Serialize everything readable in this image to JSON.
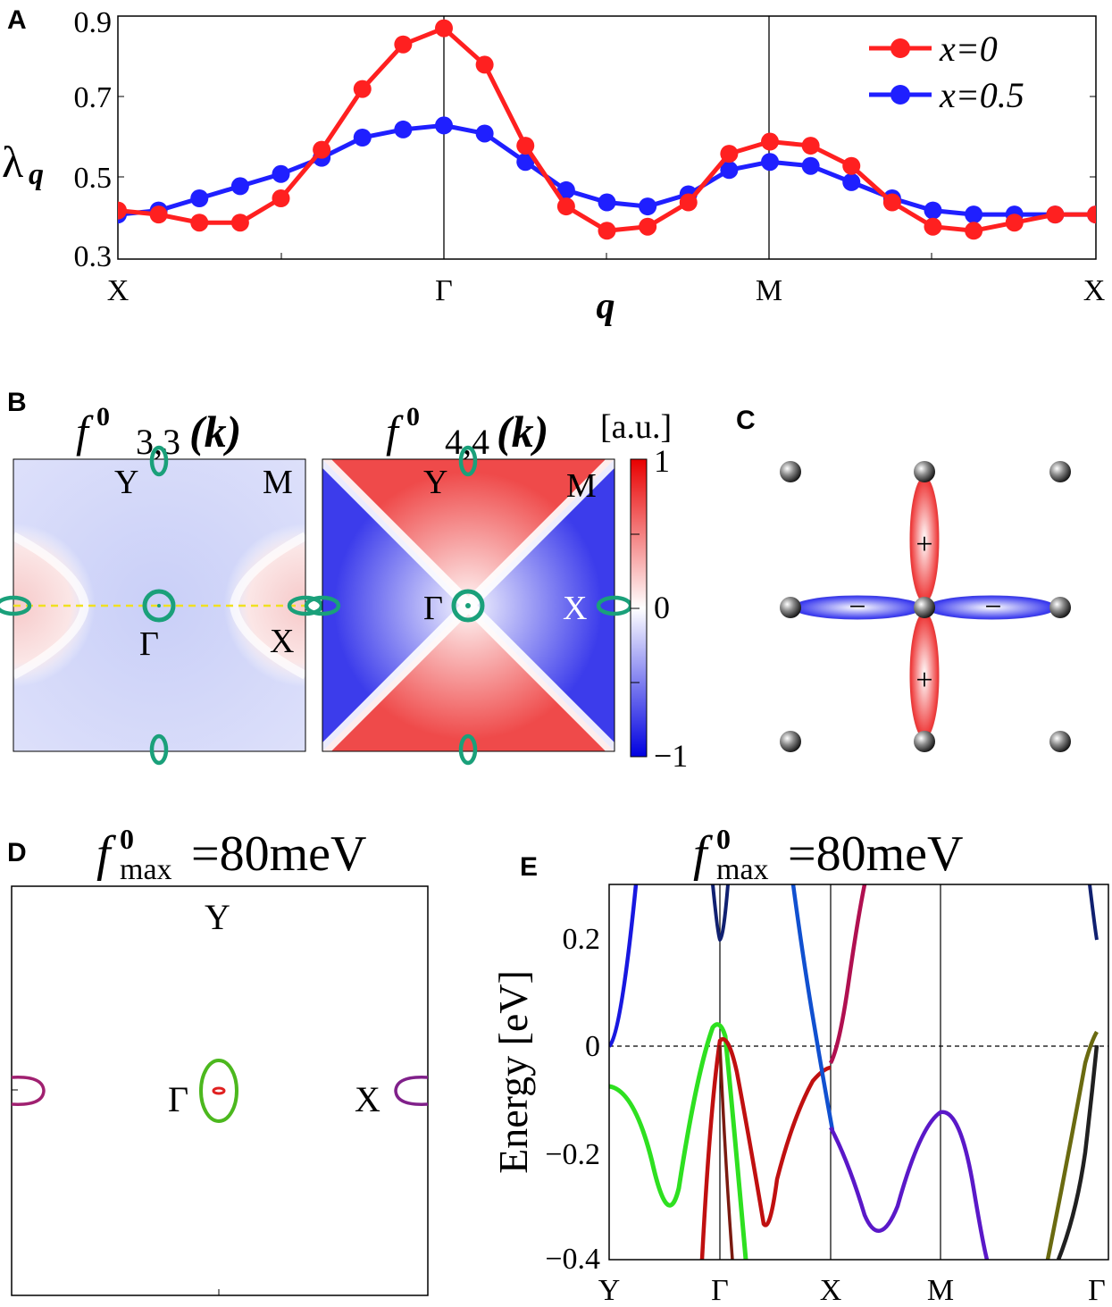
{
  "panels": {
    "A": {
      "letter": "A",
      "ylabel": "λ",
      "ylabel_sub": "q",
      "xlabel": "q",
      "yticks": [
        "0.9",
        "0.7",
        "0.5",
        "0.3"
      ],
      "xticks": [
        "X",
        "Γ",
        "M",
        "X"
      ],
      "legend": [
        "x=0",
        "x=0.5"
      ]
    },
    "B": {
      "letter": "B",
      "title_left": {
        "f": "f",
        "sup": "0",
        "sub": "3,3",
        "arg": "(k)"
      },
      "title_right": {
        "f": "f",
        "sup": "0",
        "sub": "4,4",
        "arg": "(k)"
      },
      "colorbar_unit": "[a.u.]",
      "colorbar_ticks": [
        "1",
        "0",
        "−1"
      ],
      "left_labels": {
        "Y": "Y",
        "M": "M",
        "G": "Γ",
        "X": "X"
      },
      "right_labels": {
        "Y": "Y",
        "M": "M",
        "G": "Γ",
        "X": "X"
      }
    },
    "C": {
      "letter": "C",
      "signs": {
        "up": "+",
        "down": "+",
        "left": "−",
        "right": "−"
      }
    },
    "D": {
      "letter": "D",
      "title": {
        "f": "f",
        "sup": "0",
        "sub": "max",
        "rest": "=80meV"
      },
      "labels": {
        "Y": "Y",
        "G": "Γ",
        "X": "X"
      }
    },
    "E": {
      "letter": "E",
      "title": {
        "f": "f",
        "sup": "0",
        "sub": "max",
        "rest": "=80meV"
      },
      "ylabel": "Energy [eV]",
      "yticks": [
        "0.2",
        "0",
        "−0.2",
        "−0.4"
      ],
      "xticks": [
        "Y",
        "Γ",
        "X",
        "M",
        "Γ"
      ]
    }
  },
  "colors": {
    "red": "#ff2020",
    "blue": "#1f1fff",
    "teal": "#1aa07a",
    "yellow": "#f0e020"
  },
  "chart_data": [
    {
      "type": "line",
      "title": "",
      "xlabel": "q",
      "ylabel": "λq",
      "ylim": [
        0.3,
        0.9
      ],
      "x": [
        0,
        1,
        2,
        3,
        4,
        5,
        6,
        7,
        8,
        9,
        10,
        11,
        12,
        13,
        14,
        15,
        16,
        17,
        18,
        19,
        20,
        21,
        22,
        23,
        24
      ],
      "x_ticks": {
        "X": 0,
        "Γ": 8,
        "M": 16,
        "X_end": 24
      },
      "series": [
        {
          "name": "x=0",
          "color": "#ff2020",
          "values": [
            0.42,
            0.41,
            0.39,
            0.39,
            0.45,
            0.57,
            0.72,
            0.83,
            0.87,
            0.78,
            0.58,
            0.43,
            0.37,
            0.38,
            0.44,
            0.56,
            0.59,
            0.58,
            0.53,
            0.44,
            0.38,
            0.37,
            0.39,
            0.41,
            0.41
          ]
        },
        {
          "name": "x=0.5",
          "color": "#1f1fff",
          "values": [
            0.41,
            0.42,
            0.45,
            0.48,
            0.51,
            0.55,
            0.6,
            0.62,
            0.63,
            0.61,
            0.54,
            0.47,
            0.44,
            0.43,
            0.46,
            0.52,
            0.54,
            0.53,
            0.49,
            0.45,
            0.42,
            0.41,
            0.41,
            0.41,
            0.41
          ]
        }
      ],
      "legend": "top-right",
      "grid": false
    },
    {
      "type": "line",
      "title": "f0max=80meV",
      "ylabel": "Energy [eV]",
      "ylim": [
        -0.4,
        0.3
      ],
      "x_ticks": [
        "Y",
        "Γ",
        "X",
        "M",
        "Γ"
      ],
      "fermi_level": 0
    }
  ]
}
